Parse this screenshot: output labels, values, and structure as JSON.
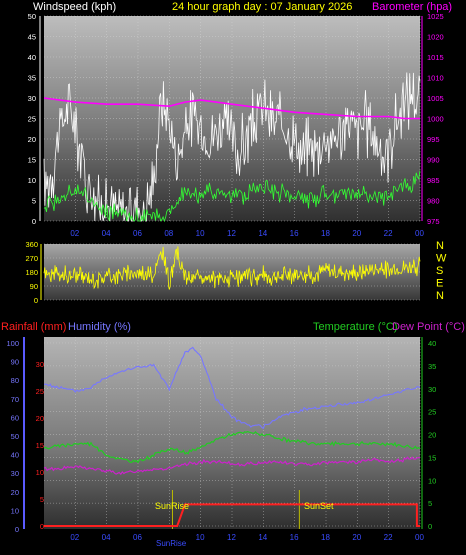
{
  "titles": {
    "windspeed": "Windspeed (kph)",
    "graph_day": "24 hour graph day : 07 January 2026",
    "barometer": "Barometer (hpa)",
    "rainfall": "Rainfall (mm)",
    "humidity": "Humidity (%)",
    "temperature": "Temperature (°C)",
    "dew_point": "Dew Point (°C)",
    "sunrise": "SunRise",
    "sunset": "SunSet",
    "sunrise_axis": "SunRise"
  },
  "colors": {
    "windspeed_title": "#ffffff",
    "graph_day_title": "#ffff00",
    "barometer": "#ff00ff",
    "wind_gust": "#ffffff",
    "wind_avg": "#33ff33",
    "wind_dir": "#ffff00",
    "rainfall": "#ff2020",
    "humidity": "#7777ff",
    "temperature": "#22cc22",
    "dew_point": "#cc22cc",
    "axis_tick": "#3a4cff",
    "direction_letters": "#ffff00",
    "rain_axis_ticks": "#ff2020",
    "temp_axis_ticks": "#22cc22",
    "sun_label": "#ffff00"
  },
  "x_tick_labels": [
    "02",
    "04",
    "06",
    "08",
    "10",
    "12",
    "14",
    "16",
    "18",
    "20",
    "22",
    "00"
  ],
  "chart_data": [
    {
      "type": "line",
      "name": "wind-barometer",
      "title": "24 hour graph day : 07 January 2026",
      "x_unit": "hour",
      "x_range": [
        0,
        24
      ],
      "y_left_label": "Windspeed (kph)",
      "y_left_ticks": [
        0,
        5,
        10,
        15,
        20,
        25,
        30,
        35,
        40,
        45,
        50
      ],
      "y_left_range": [
        0,
        50
      ],
      "y_right_label": "Barometer (hpa)",
      "y_right_ticks": [
        975,
        980,
        985,
        990,
        995,
        1000,
        1005,
        1010,
        1015,
        1020,
        1025
      ],
      "y_right_range": [
        975,
        1025
      ],
      "series": [
        {
          "name": "gust",
          "axis": "left",
          "x": [
            0,
            0.5,
            1,
            1.5,
            2,
            2.5,
            3,
            3.5,
            4,
            4.5,
            5,
            5.5,
            6,
            6.5,
            7,
            7.5,
            8,
            8.5,
            9,
            9.5,
            10,
            10.5,
            11,
            11.5,
            12,
            12.5,
            13,
            13.5,
            14,
            14.5,
            15,
            15.5,
            16,
            16.5,
            17,
            17.5,
            18,
            18.5,
            19,
            19.5,
            20,
            20.5,
            21,
            21.5,
            22,
            22.5,
            23,
            23.5,
            24
          ],
          "values": [
            8,
            12,
            22,
            28,
            24,
            14,
            8,
            4,
            4,
            3,
            2,
            3,
            4,
            2,
            10,
            30,
            24,
            14,
            22,
            26,
            22,
            20,
            22,
            24,
            20,
            16,
            22,
            24,
            28,
            24,
            24,
            22,
            20,
            16,
            18,
            18,
            20,
            20,
            22,
            24,
            22,
            24,
            22,
            16,
            18,
            24,
            28,
            32,
            30
          ]
        },
        {
          "name": "average",
          "axis": "left",
          "x": [
            0,
            1,
            2,
            3,
            4,
            5,
            6,
            7,
            8,
            9,
            10,
            11,
            12,
            13,
            14,
            15,
            16,
            17,
            18,
            19,
            20,
            21,
            22,
            23,
            24
          ],
          "values": [
            4,
            6,
            8,
            5,
            2,
            1,
            1,
            1,
            2,
            8,
            6,
            7,
            6,
            7,
            8,
            7,
            6,
            5,
            6,
            7,
            7,
            6,
            6,
            8,
            10
          ]
        },
        {
          "name": "barometer",
          "axis": "right",
          "x": [
            0,
            2,
            4,
            6,
            8,
            9,
            10,
            12,
            14,
            16,
            18,
            20,
            22,
            23,
            24
          ],
          "values": [
            1005,
            1004,
            1003.5,
            1003.5,
            1003,
            1004,
            1004.5,
            1003.5,
            1002.5,
            1001.5,
            1001,
            1000.5,
            1000.5,
            1000,
            1000
          ]
        }
      ]
    },
    {
      "type": "line",
      "name": "wind-direction",
      "x_unit": "hour",
      "x_range": [
        0,
        24
      ],
      "y_ticks": [
        0,
        90,
        180,
        270,
        360
      ],
      "y_range": [
        0,
        360
      ],
      "direction_labels": [
        "N",
        "W",
        "S",
        "E",
        "N"
      ],
      "series": [
        {
          "name": "direction",
          "x": [
            0,
            1,
            2,
            3,
            4,
            5,
            6,
            7,
            7.5,
            8,
            8.5,
            9,
            10,
            11,
            12,
            13,
            14,
            15,
            16,
            17,
            18,
            19,
            20,
            21,
            22,
            23,
            24
          ],
          "values": [
            170,
            150,
            160,
            140,
            150,
            170,
            180,
            160,
            310,
            120,
            300,
            150,
            140,
            130,
            140,
            150,
            160,
            150,
            170,
            160,
            190,
            180,
            170,
            200,
            190,
            210,
            220
          ]
        }
      ]
    },
    {
      "type": "line",
      "name": "rain-humidity-temperature",
      "x_unit": "hour",
      "x_range": [
        0,
        24
      ],
      "y_rain_ticks": [
        0,
        5,
        10,
        15,
        20,
        25,
        30
      ],
      "y_rain_range": [
        0,
        35
      ],
      "y_humidity_ticks": [
        0,
        10,
        20,
        30,
        40,
        50,
        60,
        70,
        80,
        90,
        100
      ],
      "y_humidity_range": [
        0,
        100
      ],
      "y_temp_ticks": [
        0,
        5,
        10,
        15,
        20,
        25,
        30,
        35,
        40
      ],
      "y_temp_range": [
        0,
        40
      ],
      "sunrise_hour": 8.2,
      "sunset_hour": 16.3,
      "series": [
        {
          "name": "humidity",
          "axis": "humidity",
          "x": [
            0,
            1,
            2,
            3,
            4,
            5,
            6,
            7,
            8,
            8.5,
            9,
            9.5,
            10,
            11,
            12,
            13,
            14,
            15,
            16,
            17,
            18,
            19,
            20,
            21,
            22,
            23,
            24
          ],
          "values": [
            78,
            76,
            74,
            76,
            82,
            85,
            87,
            88,
            75,
            85,
            95,
            97,
            93,
            70,
            60,
            56,
            55,
            60,
            63,
            65,
            66,
            67,
            68,
            70,
            72,
            75,
            76
          ]
        },
        {
          "name": "temperature",
          "axis": "temp",
          "x": [
            0,
            1,
            2,
            3,
            4,
            5,
            6,
            7,
            8,
            9,
            10,
            11,
            12,
            13,
            14,
            15,
            16,
            17,
            18,
            19,
            20,
            21,
            22,
            23,
            24
          ],
          "values": [
            17,
            17.5,
            18,
            18,
            15.5,
            14.5,
            14,
            15.5,
            17,
            16,
            17,
            19,
            20,
            20.5,
            20,
            19,
            18.5,
            18,
            18,
            18,
            18,
            18,
            18,
            17.5,
            17
          ]
        },
        {
          "name": "dew_point",
          "axis": "temp",
          "x": [
            0,
            1,
            2,
            3,
            4,
            5,
            6,
            7,
            8,
            9,
            10,
            11,
            12,
            13,
            14,
            15,
            16,
            17,
            18,
            19,
            20,
            21,
            22,
            23,
            24
          ],
          "values": [
            12.5,
            12.5,
            13,
            12.5,
            12,
            11.5,
            12,
            12.5,
            12.5,
            13.5,
            14,
            14,
            13.5,
            13.5,
            14,
            14,
            13.5,
            13.5,
            14,
            14,
            14,
            14.5,
            14,
            14.5,
            15
          ]
        },
        {
          "name": "rainfall",
          "axis": "rain",
          "x": [
            0,
            7.5,
            8.5,
            9,
            16.3,
            23.8,
            23.8,
            24
          ],
          "values": [
            0,
            0,
            0,
            4,
            4,
            4,
            0,
            0
          ]
        }
      ]
    }
  ]
}
